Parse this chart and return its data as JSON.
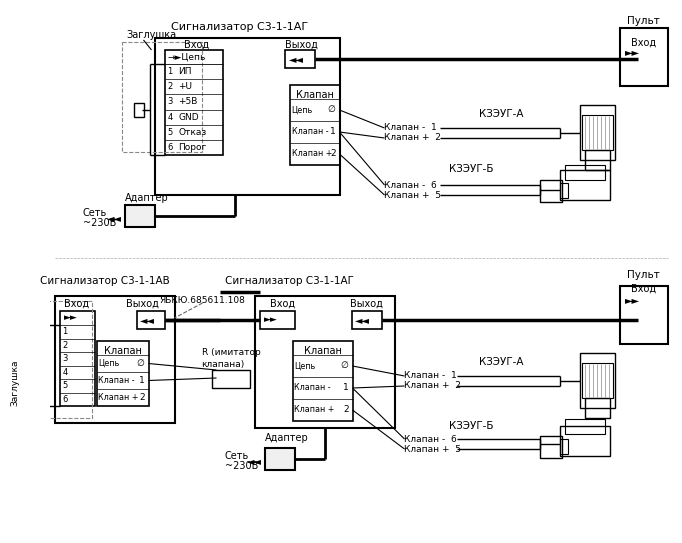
{
  "bg_color": "#ffffff",
  "title_top": "Сигнализатор С3-1-1АГ",
  "title_bot_left": "Сигнализатор С3-1-1АВ",
  "title_bot_mid": "Сигнализатор С3-1-1АГ",
  "title_pult": "Пульт",
  "vhod": "Вход",
  "vyhod": "Выход",
  "zagluska": "Заглушка",
  "adapter": "Адаптер",
  "set_label": "Сеть",
  "v230": "~230В",
  "klap": "Клапан",
  "cel": "Цепь",
  "klap_m": "Клапан -",
  "klap_p": "Клапан +",
  "kzeug_a": "КЗЭУГ-А",
  "kzeug_b": "КЗЭУГ-Б",
  "ip": "ИП",
  "pu": "+U",
  "p5v": "+5В",
  "gnd": "GND",
  "otkaz": "Отказ",
  "porog": "Порог",
  "r_imitat": "R (имитатор",
  "klapana": "клапана)",
  "yabkyu": "ЯБКЮ.685611.108",
  "klap_m1": "Клапан -  1",
  "klap_p2": "Клапан +  2",
  "klap_m6": "Клапан -  6",
  "klap_p5": "Клапан +  5",
  "line_color": "#000000",
  "text_color": "#000000"
}
